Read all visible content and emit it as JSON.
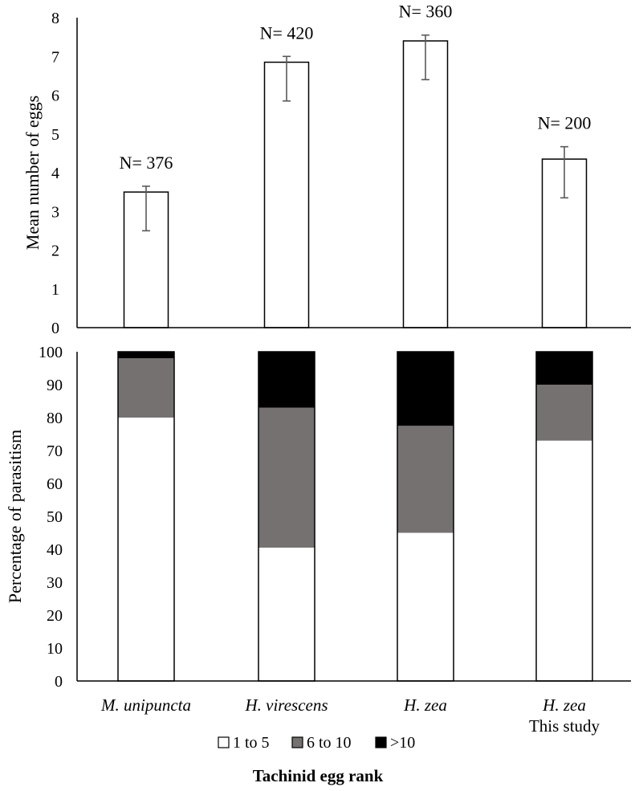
{
  "xlabel": "Tachinid egg rank",
  "categories": [
    {
      "name": "M. unipuncta",
      "note": ""
    },
    {
      "name": "H. virescens",
      "note": ""
    },
    {
      "name": "H. zea",
      "note": ""
    },
    {
      "name": "H. zea",
      "note": "This study"
    }
  ],
  "legend": [
    "1 to 5",
    "6 to 10",
    ">10"
  ],
  "colors": {
    "s1": "#ffffff",
    "s2": "#767171",
    "s3": "#000000",
    "axis": "#000000",
    "error": "#595959"
  },
  "chart_data": [
    {
      "type": "bar",
      "ylabel": "Mean number of eggs",
      "ylim": [
        0,
        8
      ],
      "yticks": [
        0,
        1,
        2,
        3,
        4,
        5,
        6,
        7,
        8
      ],
      "values": [
        3.5,
        6.85,
        7.4,
        4.35
      ],
      "error": [
        1.0,
        1.0,
        1.0,
        1.0
      ],
      "errorUpper": [
        0.15,
        0.15,
        0.15,
        0.32
      ],
      "annotations": [
        "N= 376",
        "N= 420",
        "N= 360",
        "N= 200"
      ]
    },
    {
      "type": "bar",
      "stacked": true,
      "ylabel": "Percentage of parasitism",
      "ylim": [
        0,
        100
      ],
      "yticks": [
        0,
        10,
        20,
        30,
        40,
        50,
        60,
        70,
        80,
        90,
        100
      ],
      "series": [
        {
          "name": "1 to 5",
          "values": [
            80,
            40.5,
            45,
            73
          ]
        },
        {
          "name": "6 to 10",
          "values": [
            18,
            42.5,
            32.5,
            17
          ]
        },
        {
          "name": ">10",
          "values": [
            2,
            17,
            22.5,
            10
          ]
        }
      ]
    }
  ]
}
